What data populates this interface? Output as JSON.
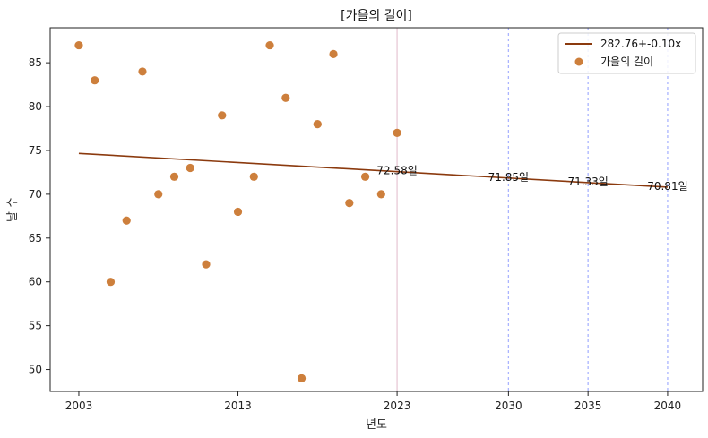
{
  "chart_data": {
    "type": "scatter",
    "title": "[가을의 길이]",
    "xlabel": "년도",
    "ylabel": "날 수",
    "xlim": [
      2001.2,
      2042.2
    ],
    "ylim": [
      47.5,
      89
    ],
    "xticks": [
      2003,
      2013,
      2023,
      2030,
      2035,
      2040
    ],
    "yticks": [
      50,
      55,
      60,
      65,
      70,
      75,
      80,
      85
    ],
    "grid": false,
    "legend_position": "top-right",
    "colors": {
      "trend": "#8b3a0e",
      "points": "#cd7f3c",
      "vline_2023": "#e8c9d6",
      "vline_future": "#aab4ff"
    },
    "series": [
      {
        "name": "가을의 길이",
        "kind": "scatter",
        "x": [
          2003,
          2004,
          2005,
          2006,
          2007,
          2008,
          2009,
          2010,
          2011,
          2012,
          2013,
          2014,
          2015,
          2016,
          2017,
          2018,
          2019,
          2020,
          2021,
          2022,
          2023
        ],
        "y": [
          87,
          83,
          60,
          67,
          84,
          70,
          72,
          73,
          62,
          79,
          68,
          72,
          87,
          81,
          49,
          78,
          86,
          69,
          72,
          70,
          77
        ]
      },
      {
        "name": "282.76+-0.10x",
        "kind": "line",
        "x": [
          2003,
          2040
        ],
        "y": [
          74.66,
          70.81
        ]
      }
    ],
    "vlines": [
      2023,
      2030,
      2035,
      2040
    ],
    "annotations": [
      {
        "x": 2023,
        "y": 72.58,
        "text": "72.58일"
      },
      {
        "x": 2030,
        "y": 71.85,
        "text": "71.85일"
      },
      {
        "x": 2035,
        "y": 71.33,
        "text": "71.33일"
      },
      {
        "x": 2040,
        "y": 70.81,
        "text": "70.81일"
      }
    ]
  }
}
